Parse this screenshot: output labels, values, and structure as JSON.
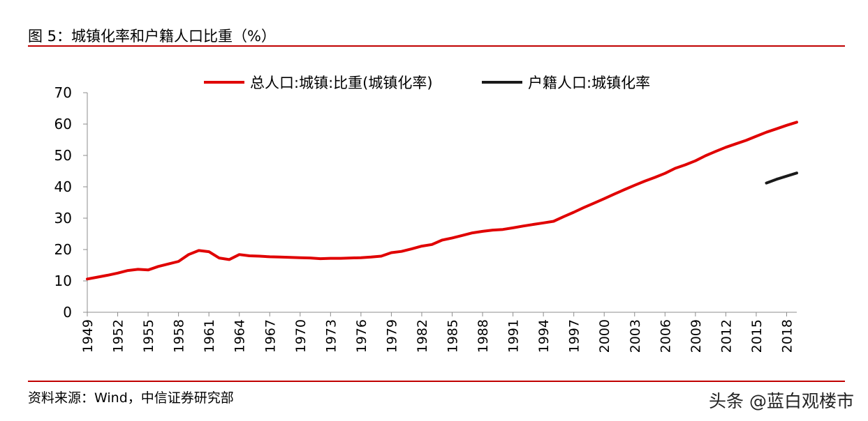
{
  "figure": {
    "title": "图 5：城镇化率和户籍人口比重（%）",
    "source": "资料来源：Wind，中信证券研究部",
    "watermark": "头条 @蓝白观楼市"
  },
  "chart_data": {
    "type": "line",
    "ylim": [
      0,
      70
    ],
    "yticks": [
      0,
      10,
      20,
      30,
      40,
      50,
      60,
      70
    ],
    "xlim": [
      1949,
      2019
    ],
    "xticks": [
      1949,
      1952,
      1955,
      1958,
      1961,
      1964,
      1967,
      1970,
      1973,
      1976,
      1979,
      1982,
      1985,
      1988,
      1991,
      1994,
      1997,
      2000,
      2003,
      2006,
      2009,
      2012,
      2015,
      2018
    ],
    "grid": false,
    "legend_position": "top",
    "series": [
      {
        "name": "总人口:城镇:比重(城镇化率)",
        "color": "#e00000",
        "x": [
          1949,
          1950,
          1951,
          1952,
          1953,
          1954,
          1955,
          1956,
          1957,
          1958,
          1959,
          1960,
          1961,
          1962,
          1963,
          1964,
          1965,
          1966,
          1967,
          1968,
          1969,
          1970,
          1971,
          1972,
          1973,
          1974,
          1975,
          1976,
          1977,
          1978,
          1979,
          1980,
          1981,
          1982,
          1983,
          1984,
          1985,
          1986,
          1987,
          1988,
          1989,
          1990,
          1991,
          1992,
          1993,
          1994,
          1995,
          1996,
          1997,
          1998,
          1999,
          2000,
          2001,
          2002,
          2003,
          2004,
          2005,
          2006,
          2007,
          2008,
          2009,
          2010,
          2011,
          2012,
          2013,
          2014,
          2015,
          2016,
          2017,
          2018,
          2019
        ],
        "values": [
          10.6,
          11.2,
          11.8,
          12.5,
          13.3,
          13.7,
          13.5,
          14.6,
          15.4,
          16.2,
          18.4,
          19.7,
          19.3,
          17.3,
          16.8,
          18.4,
          18.0,
          17.9,
          17.7,
          17.6,
          17.5,
          17.4,
          17.3,
          17.1,
          17.2,
          17.2,
          17.3,
          17.4,
          17.6,
          17.9,
          19.0,
          19.4,
          20.2,
          21.1,
          21.6,
          23.0,
          23.7,
          24.5,
          25.3,
          25.8,
          26.2,
          26.4,
          26.9,
          27.5,
          28.0,
          28.5,
          29.0,
          30.5,
          31.9,
          33.4,
          34.8,
          36.2,
          37.7,
          39.1,
          40.5,
          41.8,
          43.0,
          44.3,
          45.9,
          47.0,
          48.3,
          49.9,
          51.3,
          52.6,
          53.7,
          54.8,
          56.1,
          57.4,
          58.5,
          59.6,
          60.6
        ]
      },
      {
        "name": "户籍人口:城镇化率",
        "color": "#1a1a1a",
        "x": [
          2016,
          2017,
          2018,
          2019
        ],
        "values": [
          41.2,
          42.4,
          43.4,
          44.4
        ]
      }
    ]
  }
}
